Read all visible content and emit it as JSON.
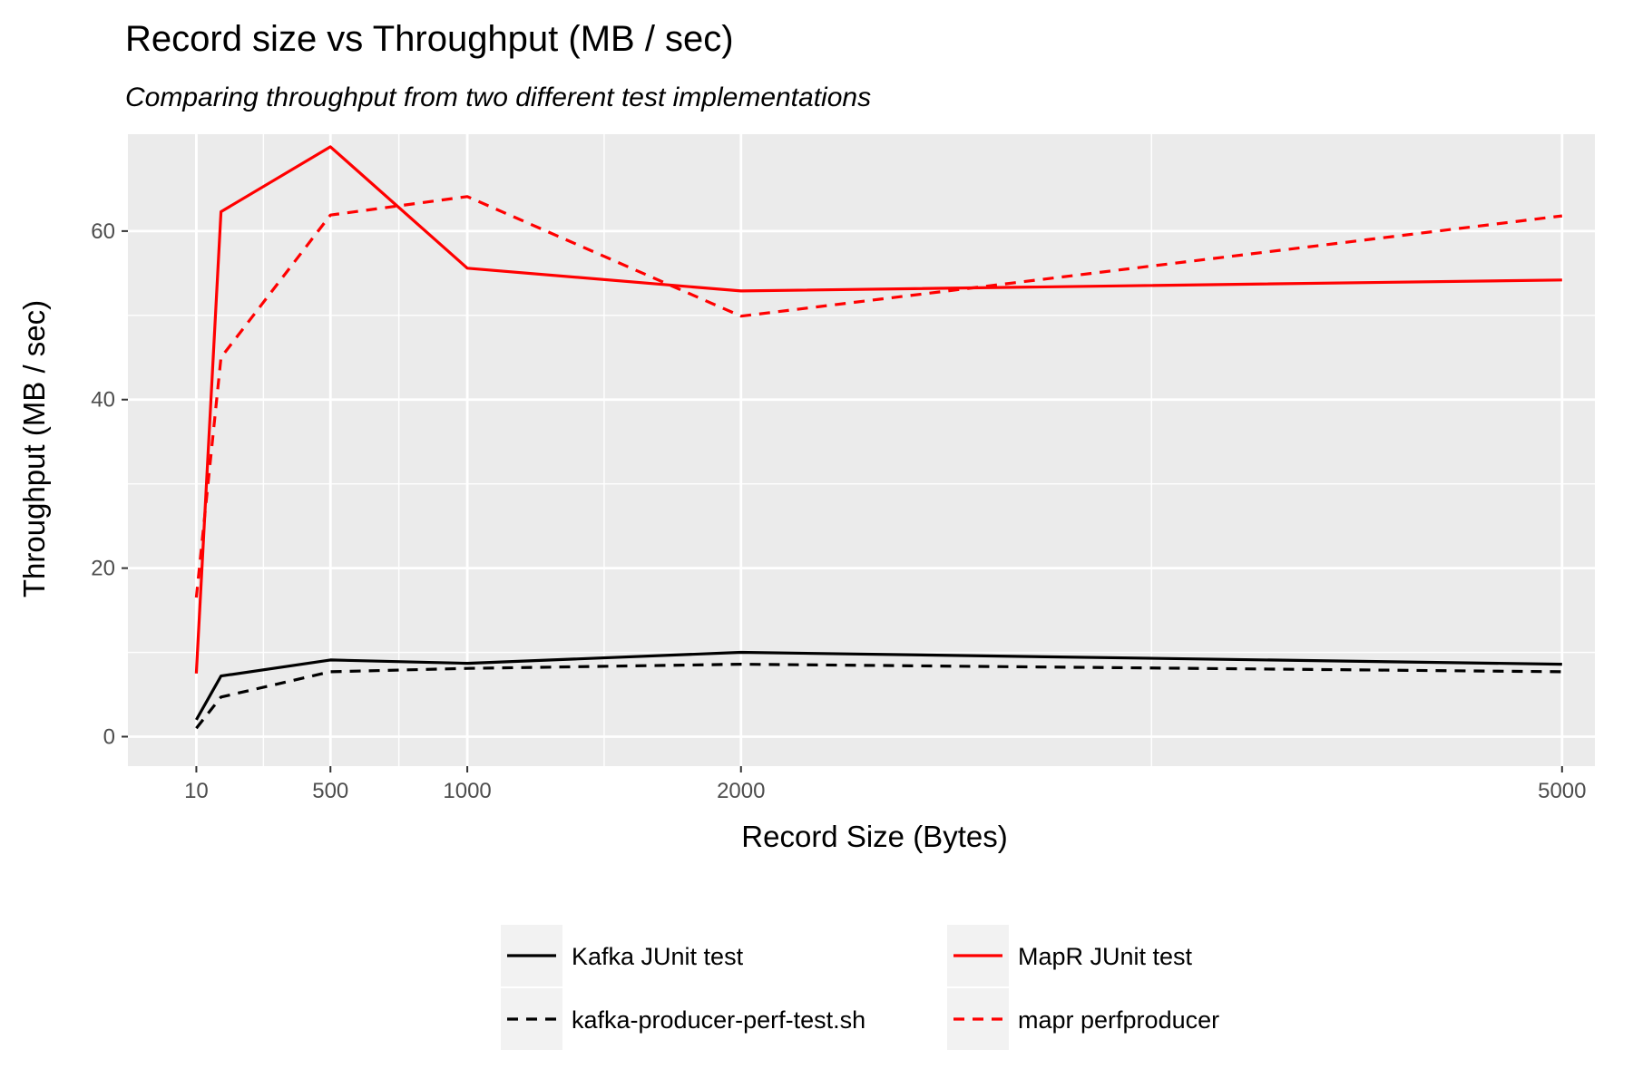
{
  "chart_data": {
    "type": "line",
    "title": "Record size vs Throughput (MB / sec)",
    "subtitle": "Comparing throughput from two different test implementations",
    "xlabel": "Record Size (Bytes)",
    "ylabel": "Throughput (MB / sec)",
    "xlim": [
      -240,
      5120
    ],
    "ylim": [
      -3.5,
      71.5
    ],
    "x_ticks": [
      10,
      500,
      1000,
      2000,
      5000
    ],
    "y_ticks": [
      0,
      20,
      40,
      60
    ],
    "grid": true,
    "legend_position": "bottom",
    "series": [
      {
        "name": "Kafka JUnit test",
        "color": "#000000",
        "dash": "solid",
        "x": [
          10,
          100,
          500,
          1000,
          2000,
          5000
        ],
        "y": [
          2.0,
          7.2,
          9.1,
          8.7,
          10.0,
          8.6
        ]
      },
      {
        "name": "MapR JUnit test",
        "color": "#ff0000",
        "dash": "solid",
        "x": [
          10,
          100,
          500,
          1000,
          2000,
          5000
        ],
        "y": [
          7.5,
          62.3,
          70.0,
          55.6,
          52.9,
          54.2
        ]
      },
      {
        "name": "kafka-producer-perf-test.sh",
        "color": "#000000",
        "dash": "dashed",
        "x": [
          10,
          100,
          500,
          1000,
          2000,
          5000
        ],
        "y": [
          1.0,
          4.7,
          7.7,
          8.1,
          8.6,
          7.7
        ]
      },
      {
        "name": "mapr perfproducer",
        "color": "#ff0000",
        "dash": "dashed",
        "x": [
          10,
          100,
          500,
          1000,
          2000,
          5000
        ],
        "y": [
          16.5,
          45.0,
          61.9,
          64.1,
          49.9,
          61.8
        ]
      }
    ]
  }
}
